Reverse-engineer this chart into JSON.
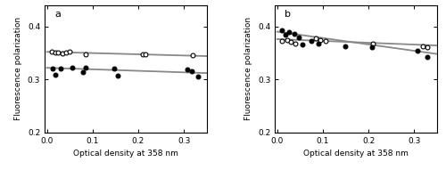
{
  "panel_a": {
    "label": "a",
    "open_circles": [
      [
        0.01,
        0.353
      ],
      [
        0.018,
        0.35
      ],
      [
        0.025,
        0.351
      ],
      [
        0.035,
        0.349
      ],
      [
        0.042,
        0.35
      ],
      [
        0.05,
        0.352
      ],
      [
        0.085,
        0.348
      ],
      [
        0.21,
        0.348
      ],
      [
        0.215,
        0.347
      ],
      [
        0.32,
        0.345
      ]
    ],
    "filled_circles": [
      [
        0.012,
        0.32
      ],
      [
        0.018,
        0.309
      ],
      [
        0.03,
        0.321
      ],
      [
        0.055,
        0.323
      ],
      [
        0.078,
        0.314
      ],
      [
        0.085,
        0.322
      ],
      [
        0.148,
        0.32
      ],
      [
        0.155,
        0.307
      ],
      [
        0.308,
        0.319
      ],
      [
        0.318,
        0.316
      ],
      [
        0.33,
        0.305
      ]
    ],
    "open_line_x": [
      0.0,
      0.35
    ],
    "open_line_y": [
      0.352,
      0.344
    ],
    "filled_line_x": [
      0.0,
      0.35
    ],
    "filled_line_y": [
      0.322,
      0.312
    ],
    "ylim": [
      0.2,
      0.44
    ],
    "yticks": [
      0.2,
      0.3,
      0.4
    ],
    "xlim": [
      -0.005,
      0.35
    ],
    "xticks": [
      0.0,
      0.1,
      0.2,
      0.3
    ]
  },
  "panel_b": {
    "label": "b",
    "open_circles": [
      [
        0.01,
        0.373
      ],
      [
        0.022,
        0.375
      ],
      [
        0.03,
        0.371
      ],
      [
        0.04,
        0.368
      ],
      [
        0.085,
        0.378
      ],
      [
        0.095,
        0.375
      ],
      [
        0.105,
        0.372
      ],
      [
        0.21,
        0.368
      ],
      [
        0.318,
        0.362
      ],
      [
        0.328,
        0.36
      ]
    ],
    "filled_circles": [
      [
        0.01,
        0.393
      ],
      [
        0.018,
        0.385
      ],
      [
        0.025,
        0.39
      ],
      [
        0.038,
        0.386
      ],
      [
        0.048,
        0.38
      ],
      [
        0.055,
        0.365
      ],
      [
        0.075,
        0.372
      ],
      [
        0.09,
        0.367
      ],
      [
        0.148,
        0.362
      ],
      [
        0.208,
        0.361
      ],
      [
        0.308,
        0.354
      ],
      [
        0.328,
        0.343
      ]
    ],
    "open_line_x": [
      0.0,
      0.35
    ],
    "open_line_y": [
      0.376,
      0.364
    ],
    "filled_line_x": [
      0.0,
      0.35
    ],
    "filled_line_y": [
      0.39,
      0.348
    ],
    "ylim": [
      0.2,
      0.44
    ],
    "yticks": [
      0.2,
      0.3,
      0.4
    ],
    "xlim": [
      -0.005,
      0.35
    ],
    "xticks": [
      0.0,
      0.1,
      0.2,
      0.3
    ]
  },
  "xlabel": "Optical density at 358 nm",
  "ylabel": "Fluorescence polarization",
  "line_color": "#888888",
  "marker_size": 3.5,
  "line_width": 1.3,
  "font_size": 6.5,
  "label_fontsize": 8
}
